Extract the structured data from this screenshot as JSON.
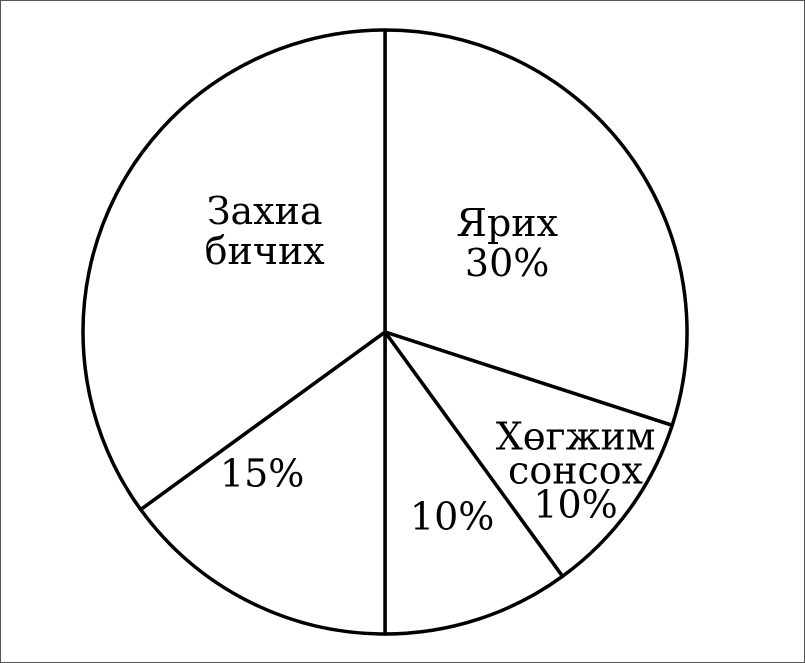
{
  "chart_data": {
    "type": "pie",
    "slices": [
      {
        "name": "Ярих",
        "value": 30,
        "label_lines": [
          "Ярих",
          "30%"
        ]
      },
      {
        "name": "Хөгжим сонсох",
        "value": 10,
        "label_lines": [
          "Хөгжим",
          "сонсох",
          "10%"
        ]
      },
      {
        "name": "",
        "value": 10,
        "label_lines": [
          "10%"
        ]
      },
      {
        "name": "",
        "value": 15,
        "label_lines": [
          "15%"
        ]
      },
      {
        "name": "Захиа бичих",
        "value": 35,
        "label_lines": [
          "Захиа",
          "бичих"
        ]
      }
    ],
    "start": "top",
    "direction": "clockwise",
    "colors": {
      "fill": "#ffffff",
      "stroke": "#000000"
    }
  }
}
